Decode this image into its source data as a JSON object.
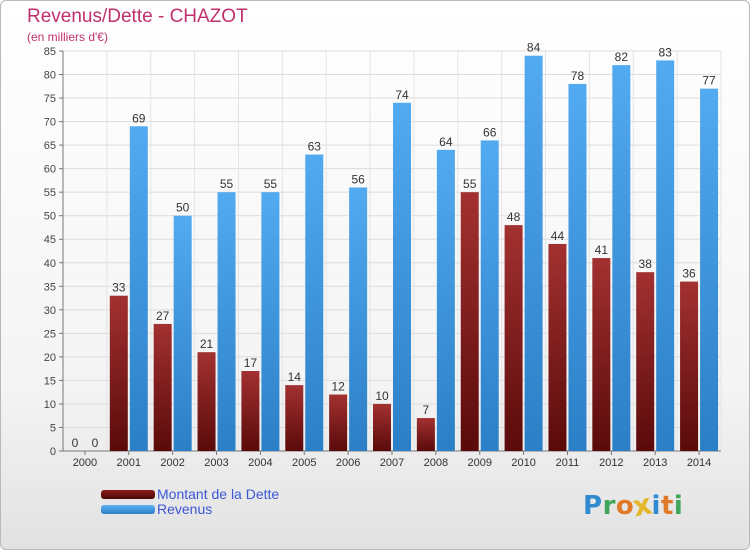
{
  "chart_data": {
    "type": "bar",
    "title": "Revenus/Dette - CHAZOT",
    "subtitle": "(en milliers d'€)",
    "categories": [
      "2000",
      "2001",
      "2002",
      "2003",
      "2004",
      "2005",
      "2006",
      "2007",
      "2008",
      "2009",
      "2010",
      "2011",
      "2012",
      "2013",
      "2014"
    ],
    "series": [
      {
        "name": "Montant de la Dette",
        "color": "#8c1c1c",
        "values": [
          0,
          33,
          27,
          21,
          17,
          14,
          12,
          10,
          7,
          55,
          48,
          44,
          41,
          38,
          36
        ]
      },
      {
        "name": "Revenus",
        "color": "#3f97de",
        "values": [
          0,
          69,
          50,
          55,
          55,
          63,
          56,
          74,
          64,
          66,
          84,
          78,
          82,
          83,
          77
        ]
      }
    ],
    "ylim": [
      0,
      85
    ],
    "yticks": [
      0,
      5,
      10,
      15,
      20,
      25,
      30,
      35,
      40,
      45,
      50,
      55,
      60,
      65,
      70,
      75,
      80,
      85
    ],
    "grid": true,
    "legend": "bottom-left"
  },
  "logo": {
    "letters": [
      {
        "ch": "P",
        "color": "#2f8ad0"
      },
      {
        "ch": "r",
        "color": "#3fa65a"
      },
      {
        "ch": "o",
        "color": "#e07a28"
      },
      {
        "ch": "x",
        "color": "#e3b72a"
      },
      {
        "ch": "i",
        "color": "#2f8ad0"
      },
      {
        "ch": "t",
        "color": "#e07a28"
      },
      {
        "ch": "i",
        "color": "#3fa65a"
      }
    ]
  }
}
